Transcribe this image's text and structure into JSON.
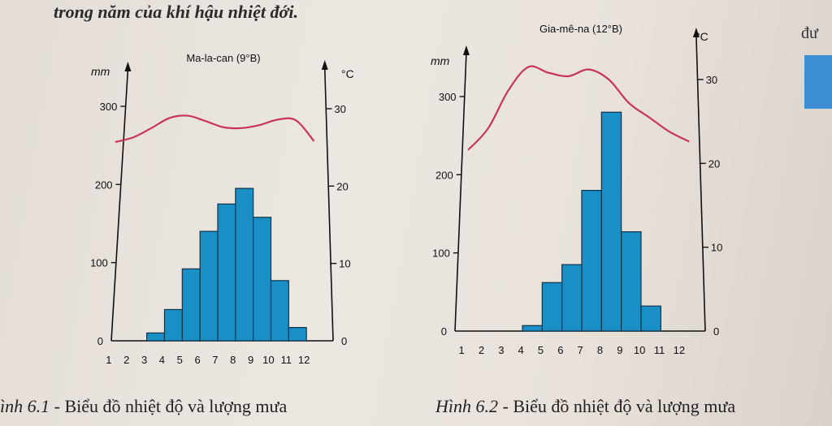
{
  "page": {
    "heading": "trong năm của khí hậu nhiệt đới.",
    "corner_word": "đư",
    "caption1_num": "ình 6.1",
    "caption1_text": " - Biểu đồ nhiệt độ và lượng mưa",
    "caption2_num": "Hình 6.2",
    "caption2_text": " - Biểu đồ nhiệt độ và lượng mưa"
  },
  "chart_data": [
    {
      "type": "bar",
      "title": "Ma-la-can (9°B)",
      "left_unit": "mm",
      "right_unit": "°C",
      "categories": [
        "1",
        "2",
        "3",
        "4",
        "5",
        "6",
        "7",
        "8",
        "9",
        "10",
        "11",
        "12"
      ],
      "rainfall_ticks": [
        0,
        100,
        200,
        300
      ],
      "temperature_ticks": [
        0,
        10,
        20,
        30
      ],
      "ylim_rainfall": [
        0,
        340
      ],
      "ylim_temperature": [
        0,
        34
      ],
      "series": [
        {
          "name": "",
          "kind": "bar",
          "axis": "left",
          "values": [
            0,
            0,
            10,
            40,
            92,
            140,
            175,
            195,
            158,
            77,
            17,
            0
          ]
        },
        {
          "name": "",
          "kind": "line",
          "axis": "right",
          "values": [
            25.7,
            26.3,
            27.5,
            28.8,
            29.1,
            28.4,
            27.6,
            27.5,
            27.9,
            28.6,
            28.5,
            25.8
          ]
        }
      ],
      "colors": {
        "bar": "#1a8fc6",
        "line": "#c8345a"
      }
    },
    {
      "type": "bar",
      "title": "Gia-mê-na (12°B)",
      "left_unit": "mm",
      "right_unit": "°C",
      "categories": [
        "1",
        "2",
        "3",
        "4",
        "5",
        "6",
        "7",
        "8",
        "9",
        "10",
        "11",
        "12"
      ],
      "rainfall_ticks": [
        0,
        100,
        200,
        300
      ],
      "temperature_ticks": [
        0,
        10,
        20,
        30
      ],
      "ylim_rainfall": [
        0,
        375
      ],
      "ylim_temperature": [
        0,
        37
      ],
      "series": [
        {
          "name": "",
          "kind": "bar",
          "axis": "left",
          "values": [
            0,
            0,
            0,
            7,
            62,
            85,
            180,
            280,
            127,
            32,
            0,
            0
          ]
        },
        {
          "name": "",
          "kind": "line",
          "axis": "right",
          "values": [
            21.6,
            24.2,
            28.7,
            31.5,
            30.8,
            30.4,
            31.2,
            30.0,
            27.2,
            25.5,
            23.8,
            22.6
          ]
        }
      ],
      "colors": {
        "bar": "#1a8fc6",
        "line": "#c8345a"
      }
    }
  ]
}
